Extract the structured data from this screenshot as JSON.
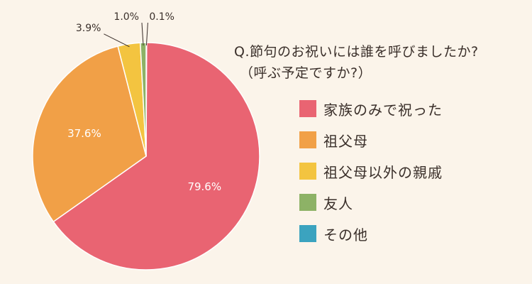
{
  "question": {
    "line1": "Q.節句のお祝いには誰を呼びましたか?",
    "line2": "（呼ぶ予定ですか?）"
  },
  "chart_data": {
    "type": "pie",
    "categories": [
      "家族のみで祝った",
      "祖父母",
      "祖父母以外の親戚",
      "友人",
      "その他"
    ],
    "values": [
      79.6,
      37.6,
      3.9,
      1.0,
      0.1
    ],
    "labels": [
      "79.6%",
      "37.6%",
      "3.9%",
      "1.0%",
      "0.1%"
    ],
    "colors": [
      "#e96472",
      "#f1a047",
      "#f3c440",
      "#8db266",
      "#3ba3bf"
    ],
    "slice_order_clockwise_from_top": [
      "その他",
      "家族のみで祝った",
      "祖父母",
      "祖父母以外の親戚",
      "友人"
    ],
    "legend_position": "right"
  },
  "legend": [
    {
      "label": "家族のみで祝った",
      "color": "#e96472"
    },
    {
      "label": "祖父母",
      "color": "#f1a047"
    },
    {
      "label": "祖父母以外の親戚",
      "color": "#f3c440"
    },
    {
      "label": "友人",
      "color": "#8db266"
    },
    {
      "label": "その他",
      "color": "#3ba3bf"
    }
  ]
}
